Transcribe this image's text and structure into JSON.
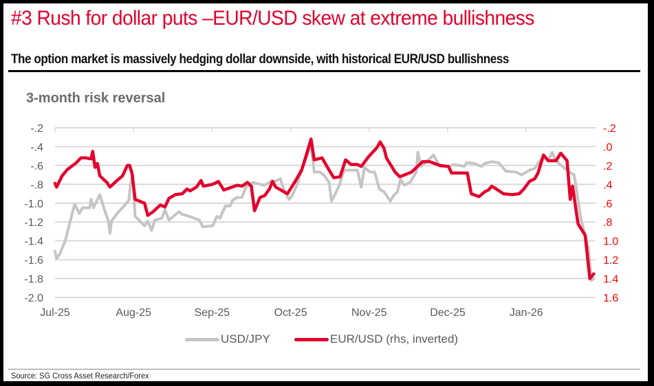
{
  "header": {
    "title": "#3 Rush for dollar puts –EUR/USD skew at extreme bullishness",
    "subtitle": "The option market is massively hedging dollar downside, with historical EUR/USD bullishness"
  },
  "source": "Source: SG Cross Asset Research/Forex",
  "colors": {
    "title": "#e3002c",
    "usdjpy": "#c8c4c4",
    "eurusd": "#e3002c",
    "grid": "#d9d9d9",
    "right_axis": "#ff0000"
  },
  "chart_data": {
    "type": "line",
    "title": "3-month risk reversal",
    "xlabel": "",
    "ylabel": "",
    "x_unit": "months since Jul-25",
    "x_ticks": [
      "Jul-25",
      "Aug-25",
      "Sep-25",
      "Oct-25",
      "Nov-25",
      "Dec-25",
      "Jan-26"
    ],
    "xlim": [
      0,
      6.9
    ],
    "y_left": {
      "ticks": [
        "-.2",
        "-.4",
        "-.6",
        "-.8",
        "-1.0",
        "-1.2",
        "-1.4",
        "-1.6",
        "-1.8",
        "-2.0"
      ],
      "ylim": [
        -2.0,
        -0.2
      ]
    },
    "y_right": {
      "ticks": [
        "-.2",
        ".0",
        ".2",
        ".4",
        ".6",
        ".8",
        "1.0",
        "1.2",
        "1.4",
        "1.6"
      ],
      "ylim": [
        -0.2,
        1.6
      ],
      "inverted": true
    },
    "grid": true,
    "legend": "bottom-center",
    "series": [
      {
        "name": "USD/JPY",
        "axis": "left",
        "points": [
          [
            0,
            -1.51
          ],
          [
            0.02,
            -1.59
          ],
          [
            0.06,
            -1.54
          ],
          [
            0.13,
            -1.4
          ],
          [
            0.25,
            -1.01
          ],
          [
            0.31,
            -1.11
          ],
          [
            0.35,
            -1.05
          ],
          [
            0.44,
            -1.05
          ],
          [
            0.46,
            -0.96
          ],
          [
            0.49,
            -1.05
          ],
          [
            0.57,
            -0.91
          ],
          [
            0.63,
            -1.07
          ],
          [
            0.68,
            -1.19
          ],
          [
            0.7,
            -1.32
          ],
          [
            0.72,
            -1.19
          ],
          [
            0.79,
            -1.11
          ],
          [
            0.88,
            -1.03
          ],
          [
            0.94,
            -0.97
          ],
          [
            0.96,
            -0.81
          ],
          [
            0.99,
            -0.7
          ],
          [
            1.02,
            -1.14
          ],
          [
            1.14,
            -1.24
          ],
          [
            1.18,
            -1.19
          ],
          [
            1.23,
            -1.29
          ],
          [
            1.27,
            -1.18
          ],
          [
            1.36,
            -1.16
          ],
          [
            1.4,
            -1.07
          ],
          [
            1.45,
            -1.18
          ],
          [
            1.58,
            -1.09
          ],
          [
            1.62,
            -1.12
          ],
          [
            1.71,
            -1.14
          ],
          [
            1.84,
            -1.18
          ],
          [
            1.88,
            -1.25
          ],
          [
            2.01,
            -1.24
          ],
          [
            2.06,
            -1.14
          ],
          [
            2.1,
            -1.16
          ],
          [
            2.17,
            -1.03
          ],
          [
            2.23,
            -1.03
          ],
          [
            2.26,
            -0.97
          ],
          [
            2.32,
            -0.94
          ],
          [
            2.38,
            -0.94
          ],
          [
            2.43,
            -0.83
          ],
          [
            2.52,
            -0.78
          ],
          [
            2.61,
            -0.8
          ],
          [
            2.67,
            -0.81
          ],
          [
            2.76,
            -0.76
          ],
          [
            2.8,
            -0.77
          ],
          [
            2.87,
            -0.74
          ],
          [
            2.89,
            -0.8
          ],
          [
            2.93,
            -0.89
          ],
          [
            2.98,
            -0.96
          ],
          [
            3.02,
            -0.92
          ],
          [
            3.08,
            -0.81
          ],
          [
            3.15,
            -0.63
          ],
          [
            3.26,
            -0.38
          ],
          [
            3.3,
            -0.67
          ],
          [
            3.37,
            -0.67
          ],
          [
            3.42,
            -0.7
          ],
          [
            3.49,
            -0.78
          ],
          [
            3.52,
            -0.98
          ],
          [
            3.57,
            -0.9
          ],
          [
            3.62,
            -0.81
          ],
          [
            3.68,
            -0.65
          ],
          [
            3.77,
            -0.65
          ],
          [
            3.85,
            -0.65
          ],
          [
            3.9,
            -0.83
          ],
          [
            3.94,
            -0.62
          ],
          [
            4.01,
            -0.67
          ],
          [
            4.07,
            -0.67
          ],
          [
            4.13,
            -0.85
          ],
          [
            4.19,
            -0.88
          ],
          [
            4.27,
            -0.98
          ],
          [
            4.31,
            -0.92
          ],
          [
            4.36,
            -0.88
          ],
          [
            4.4,
            -0.75
          ],
          [
            4.45,
            -0.81
          ],
          [
            4.52,
            -0.78
          ],
          [
            4.6,
            -0.67
          ],
          [
            4.62,
            -0.46
          ],
          [
            4.66,
            -0.61
          ],
          [
            4.77,
            -0.53
          ],
          [
            4.82,
            -0.49
          ],
          [
            4.9,
            -0.61
          ],
          [
            5.01,
            -0.61
          ],
          [
            5.08,
            -0.59
          ],
          [
            5.21,
            -0.61
          ],
          [
            5.24,
            -0.57
          ],
          [
            5.34,
            -0.58
          ],
          [
            5.43,
            -0.61
          ],
          [
            5.47,
            -0.58
          ],
          [
            5.56,
            -0.56
          ],
          [
            5.65,
            -0.57
          ],
          [
            5.74,
            -0.66
          ],
          [
            5.87,
            -0.67
          ],
          [
            5.94,
            -0.7
          ],
          [
            6.04,
            -0.65
          ],
          [
            6.11,
            -0.63
          ],
          [
            6.15,
            -0.58
          ],
          [
            6.22,
            -0.5
          ],
          [
            6.28,
            -0.54
          ],
          [
            6.33,
            -0.46
          ],
          [
            6.37,
            -0.54
          ],
          [
            6.46,
            -0.61
          ],
          [
            6.55,
            -0.67
          ],
          [
            6.61,
            -0.7
          ],
          [
            6.7,
            -1.18
          ],
          [
            6.79,
            -1.47
          ],
          [
            6.83,
            -1.82
          ],
          [
            6.86,
            -1.8
          ]
        ]
      },
      {
        "name": "EUR/USD (rhs, inverted)",
        "axis": "right",
        "points": [
          [
            0,
            0.39
          ],
          [
            0.02,
            0.43
          ],
          [
            0.09,
            0.31
          ],
          [
            0.16,
            0.24
          ],
          [
            0.26,
            0.18
          ],
          [
            0.33,
            0.12
          ],
          [
            0.39,
            0.12
          ],
          [
            0.46,
            0.13
          ],
          [
            0.48,
            0.05
          ],
          [
            0.51,
            0.22
          ],
          [
            0.54,
            0.18
          ],
          [
            0.57,
            0.31
          ],
          [
            0.66,
            0.38
          ],
          [
            0.7,
            0.43
          ],
          [
            0.79,
            0.36
          ],
          [
            0.86,
            0.31
          ],
          [
            0.92,
            0.2
          ],
          [
            0.95,
            0.2
          ],
          [
            0.98,
            0.28
          ],
          [
            1.02,
            0.56
          ],
          [
            1.14,
            0.6
          ],
          [
            1.18,
            0.73
          ],
          [
            1.25,
            0.69
          ],
          [
            1.34,
            0.62
          ],
          [
            1.4,
            0.64
          ],
          [
            1.45,
            0.55
          ],
          [
            1.53,
            0.51
          ],
          [
            1.62,
            0.5
          ],
          [
            1.68,
            0.45
          ],
          [
            1.72,
            0.47
          ],
          [
            1.8,
            0.43
          ],
          [
            1.86,
            0.36
          ],
          [
            1.89,
            0.42
          ],
          [
            2.01,
            0.4
          ],
          [
            2.08,
            0.37
          ],
          [
            2.15,
            0.46
          ],
          [
            2.32,
            0.41
          ],
          [
            2.38,
            0.42
          ],
          [
            2.45,
            0.38
          ],
          [
            2.5,
            0.42
          ],
          [
            2.54,
            0.68
          ],
          [
            2.61,
            0.54
          ],
          [
            2.67,
            0.52
          ],
          [
            2.73,
            0.45
          ],
          [
            2.77,
            0.37
          ],
          [
            2.81,
            0.43
          ],
          [
            2.96,
            0.5
          ],
          [
            3.05,
            0.38
          ],
          [
            3.14,
            0.25
          ],
          [
            3.2,
            0.09
          ],
          [
            3.26,
            -0.08
          ],
          [
            3.3,
            0.14
          ],
          [
            3.4,
            0.12
          ],
          [
            3.49,
            0.25
          ],
          [
            3.55,
            0.33
          ],
          [
            3.63,
            0.32
          ],
          [
            3.7,
            0.14
          ],
          [
            3.77,
            0.19
          ],
          [
            3.85,
            0.19
          ],
          [
            3.9,
            0.21
          ],
          [
            3.99,
            0.11
          ],
          [
            4.1,
            0.01
          ],
          [
            4.14,
            -0.05
          ],
          [
            4.19,
            0.02
          ],
          [
            4.22,
            0.12
          ],
          [
            4.33,
            0.27
          ],
          [
            4.39,
            0.32
          ],
          [
            4.54,
            0.27
          ],
          [
            4.68,
            0.16
          ],
          [
            4.77,
            0.16
          ],
          [
            4.9,
            0.2
          ],
          [
            5.01,
            0.21
          ],
          [
            5.05,
            0.28
          ],
          [
            5.15,
            0.28
          ],
          [
            5.25,
            0.28
          ],
          [
            5.3,
            0.5
          ],
          [
            5.4,
            0.53
          ],
          [
            5.47,
            0.48
          ],
          [
            5.52,
            0.46
          ],
          [
            5.56,
            0.42
          ],
          [
            5.62,
            0.45
          ],
          [
            5.71,
            0.5
          ],
          [
            5.82,
            0.51
          ],
          [
            5.91,
            0.5
          ],
          [
            5.97,
            0.45
          ],
          [
            6.04,
            0.37
          ],
          [
            6.11,
            0.34
          ],
          [
            6.15,
            0.28
          ],
          [
            6.22,
            0.09
          ],
          [
            6.28,
            0.15
          ],
          [
            6.38,
            0.15
          ],
          [
            6.44,
            0.07
          ],
          [
            6.52,
            0.15
          ],
          [
            6.56,
            0.56
          ],
          [
            6.59,
            0.42
          ],
          [
            6.66,
            0.82
          ],
          [
            6.75,
            0.94
          ],
          [
            6.81,
            1.4
          ],
          [
            6.86,
            1.35
          ]
        ]
      }
    ]
  }
}
